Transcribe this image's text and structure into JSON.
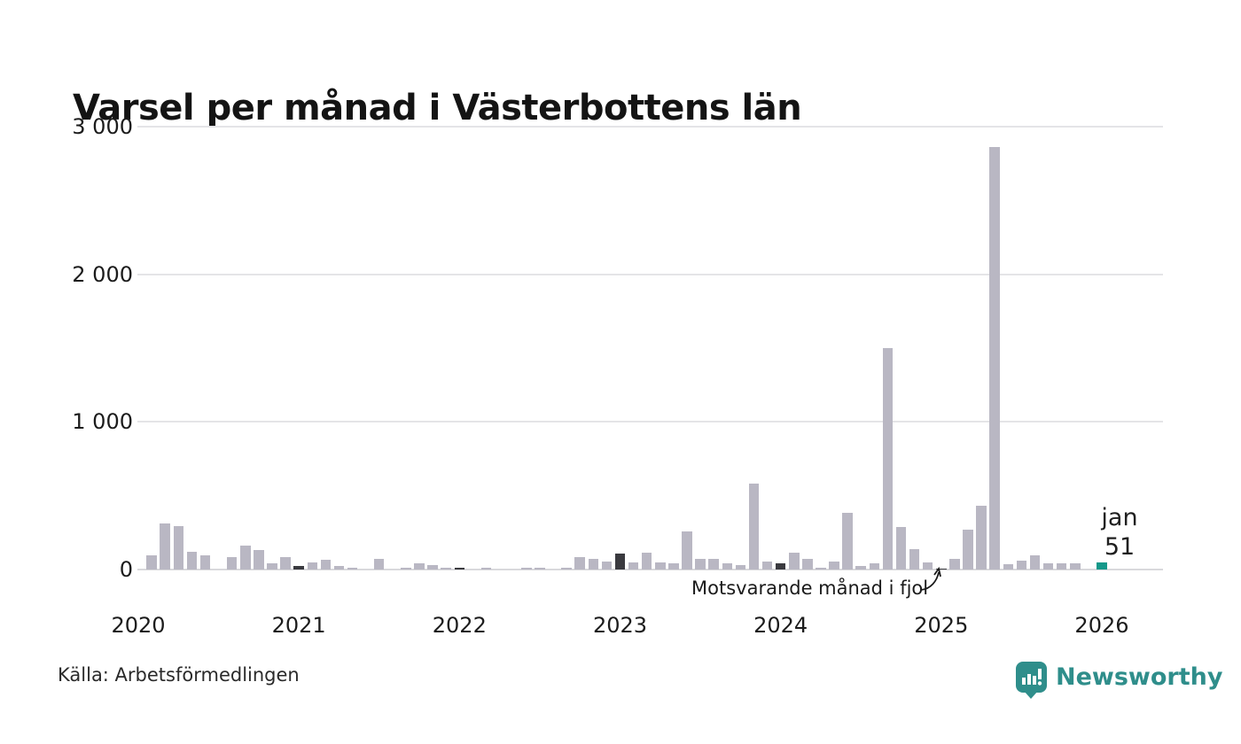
{
  "header": {
    "title": "Varsel per månad i Västerbottens län"
  },
  "chart_data": {
    "type": "bar",
    "title": "Varsel per månad i Västerbottens län",
    "x_start": "2020-01",
    "x_end": "2026-01",
    "ylim": [
      0,
      3000
    ],
    "grid": "horizontal",
    "yticks": [
      {
        "label": "3 000",
        "value": 3000
      },
      {
        "label": "2 000",
        "value": 2000
      },
      {
        "label": "1 000",
        "value": 1000
      },
      {
        "label": "0",
        "value": 0
      }
    ],
    "year_order": [
      "2020",
      "2021",
      "2022",
      "2023",
      "2024",
      "2025",
      "2026"
    ],
    "series_by_year": {
      "2020": [
        0,
        95,
        310,
        295,
        120,
        95,
        0,
        85,
        165,
        135,
        45,
        85
      ],
      "2021": [
        25,
        50,
        65,
        25,
        10,
        0,
        70,
        0,
        15,
        45,
        30,
        15
      ],
      "2022": [
        15,
        0,
        10,
        0,
        0,
        10,
        10,
        0,
        15,
        85,
        75,
        55
      ],
      "2023": [
        110,
        50,
        115,
        50,
        45,
        260,
        75,
        75,
        40,
        30,
        580,
        55
      ],
      "2024": [
        40,
        115,
        75,
        15,
        55,
        385,
        25,
        45,
        1500,
        290,
        140,
        50
      ],
      "2025": [
        5,
        75,
        270,
        430,
        2860,
        35,
        60,
        95,
        45,
        45,
        45,
        0
      ],
      "2026": [
        51
      ]
    },
    "january_dark_years": [
      "2021",
      "2022",
      "2023",
      "2024",
      "2025"
    ],
    "highlight_month": {
      "year": "2026",
      "month": "jan",
      "value": 51
    },
    "highlight_label": {
      "line1": "jan",
      "line2": "51"
    },
    "annotation": "Motsvarande månad i fjol",
    "annotation_target": "2025-01",
    "colors": {
      "bar": "#b9b7c3",
      "dark": "#3a3a3f",
      "highlight": "#14988a",
      "gridline": "#e4e4e7",
      "brand": "#2f8e8b"
    }
  },
  "footer": {
    "source_label": "Källa: Arbetsförmedlingen",
    "brand_name": "Newsworthy"
  }
}
